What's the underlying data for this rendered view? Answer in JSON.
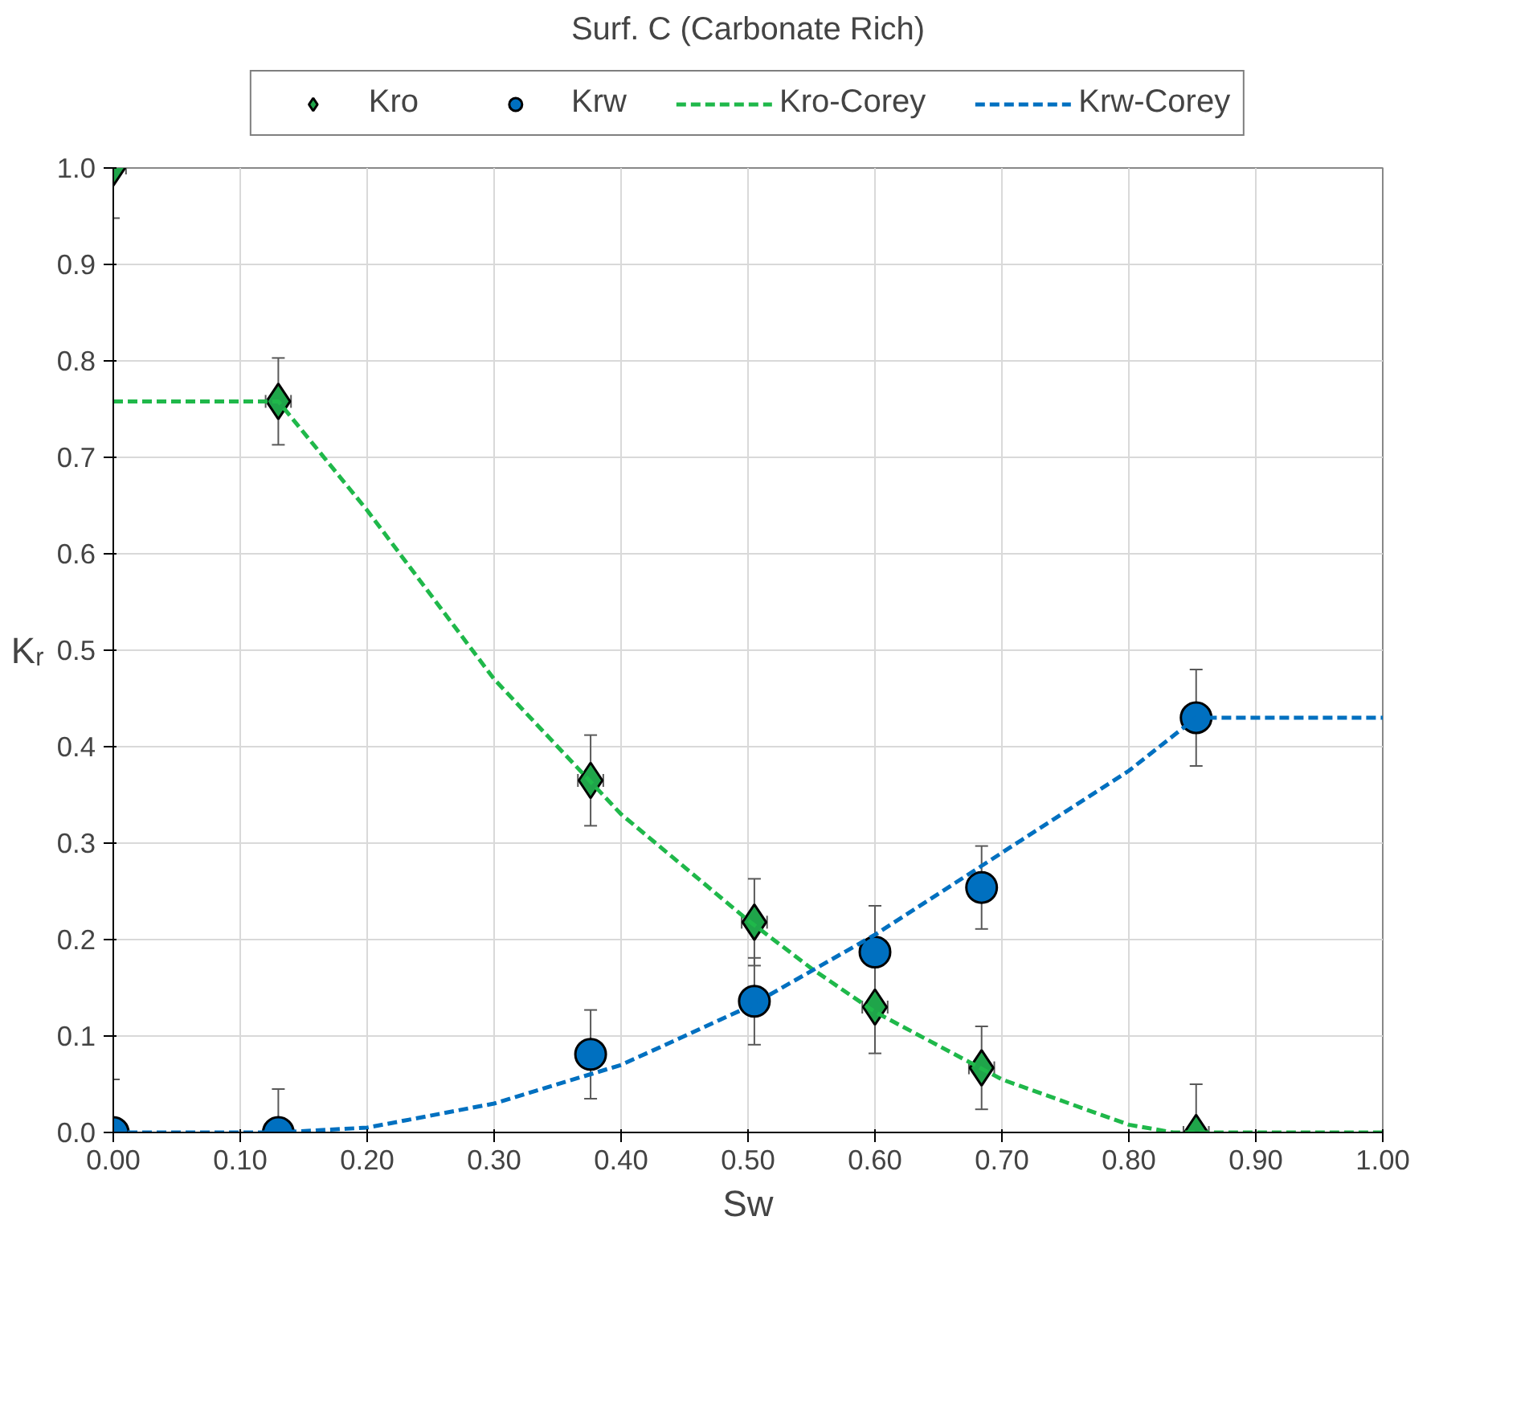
{
  "chart_data": {
    "type": "scatter",
    "title": "Surf. C (Carbonate Rich)",
    "xlabel": "Sw",
    "ylabel": "Kᵣ",
    "xlim": [
      0,
      1
    ],
    "ylim": [
      0,
      1
    ],
    "xticks": [
      {
        "value": 0,
        "label": "0.00"
      },
      {
        "value": 0.1,
        "label": "0.10"
      },
      {
        "value": 0.2,
        "label": "0.20"
      },
      {
        "value": 0.3,
        "label": "0.30"
      },
      {
        "value": 0.4,
        "label": "0.40"
      },
      {
        "value": 0.5,
        "label": "0.50"
      },
      {
        "value": 0.6,
        "label": "0.60"
      },
      {
        "value": 0.7,
        "label": "0.70"
      },
      {
        "value": 0.8,
        "label": "0.80"
      },
      {
        "value": 0.9,
        "label": "0.90"
      },
      {
        "value": 1,
        "label": "1.00"
      }
    ],
    "yticks": [
      {
        "value": 0,
        "label": "0.0"
      },
      {
        "value": 0.1,
        "label": "0.1"
      },
      {
        "value": 0.2,
        "label": "0.2"
      },
      {
        "value": 0.3,
        "label": "0.3"
      },
      {
        "value": 0.4,
        "label": "0.4"
      },
      {
        "value": 0.5,
        "label": "0.5"
      },
      {
        "value": 0.6,
        "label": "0.6"
      },
      {
        "value": 0.7,
        "label": "0.7"
      },
      {
        "value": 0.8,
        "label": "0.8"
      },
      {
        "value": 0.9,
        "label": "0.9"
      },
      {
        "value": 1,
        "label": "1.0"
      }
    ],
    "grid": true,
    "legend": "top",
    "series": [
      {
        "name": "Kro",
        "marker": "diamond",
        "color": "#1fa54a",
        "x": [
          0,
          0.13,
          0.376,
          0.505,
          0.6,
          0.684,
          0.853
        ],
        "values": [
          1.0,
          0.758,
          0.365,
          0.218,
          0.13,
          0.067,
          0.0
        ],
        "errors": [
          [
            0.948,
            1.0
          ],
          0.045,
          0.047,
          0.045,
          0.048,
          0.043,
          [
            0.0,
            0.05
          ]
        ],
        "xerrors": [
          0.01,
          0.01,
          0.01,
          0.01,
          0.01,
          0.01,
          0.01
        ]
      },
      {
        "name": "Krw",
        "marker": "circle",
        "color": "#0070c0",
        "x": [
          0,
          0.13,
          0.376,
          0.505,
          0.6,
          0.684,
          0.853
        ],
        "values": [
          0.0,
          0.0,
          0.081,
          0.136,
          0.187,
          0.254,
          0.43
        ],
        "errors": [
          [
            0.0,
            0.055
          ],
          [
            0.0,
            0.045
          ],
          0.046,
          0.045,
          0.048,
          0.043,
          0.05
        ],
        "xerrors": [
          0.01,
          0.01,
          0.01,
          0.01,
          0.01,
          0.01,
          0.01
        ]
      },
      {
        "name": "Kro-Corey",
        "type": "line",
        "line_style": "dashed",
        "color": "#1fb84a",
        "x": [
          0,
          0.13,
          0.2,
          0.3,
          0.4,
          0.5,
          0.55,
          0.6,
          0.7,
          0.8,
          0.835,
          1.0
        ],
        "values": [
          0.758,
          0.758,
          0.645,
          0.47,
          0.33,
          0.22,
          0.17,
          0.125,
          0.055,
          0.008,
          0.0,
          0.0
        ]
      },
      {
        "name": "Krw-Corey",
        "type": "line",
        "line_style": "dashed",
        "color": "#0070c0",
        "x": [
          0,
          0.13,
          0.2,
          0.3,
          0.4,
          0.5,
          0.6,
          0.7,
          0.8,
          0.853,
          1.0
        ],
        "values": [
          0.0,
          0.0,
          0.005,
          0.03,
          0.07,
          0.13,
          0.205,
          0.29,
          0.375,
          0.43,
          0.43
        ]
      }
    ]
  }
}
